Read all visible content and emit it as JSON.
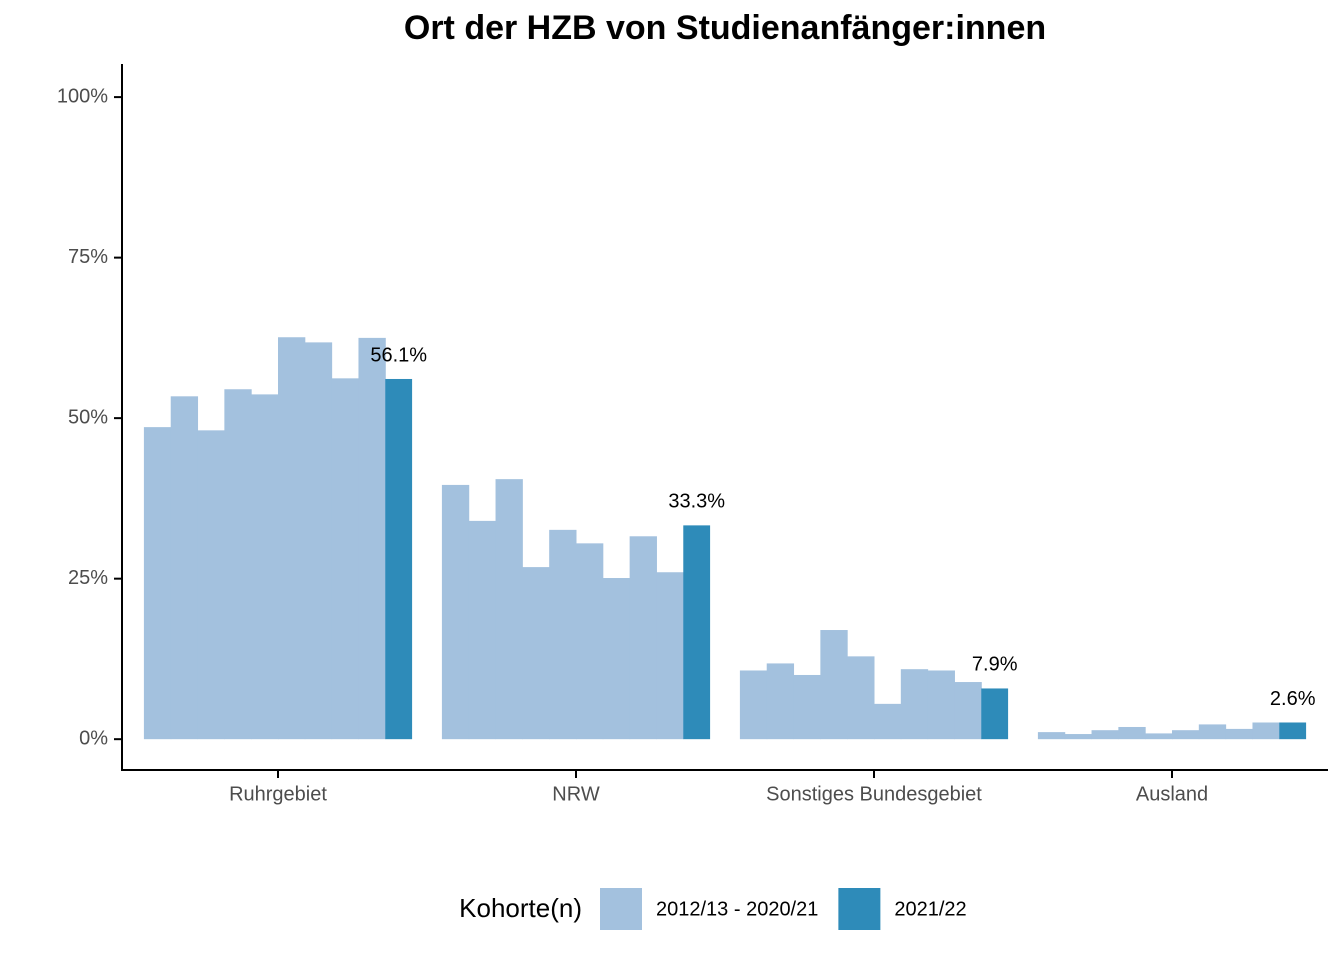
{
  "chart_data": {
    "type": "bar",
    "title": "Ort der HZB von Studienanfänger:innen",
    "categories": [
      "Ruhrgebiet",
      "NRW",
      "Sonstiges Bundesgebiet",
      "Ausland"
    ],
    "series": [
      {
        "name": "2012/13 - 2020/21",
        "color": "#a3c1de",
        "values": [
          [
            48.6,
            53.4,
            48.1,
            54.5,
            53.7,
            62.6,
            61.8,
            56.2,
            62.5
          ],
          [
            39.6,
            34.0,
            40.5,
            26.8,
            32.6,
            30.5,
            25.1,
            31.6,
            26.0
          ],
          [
            10.7,
            11.8,
            10.0,
            17.0,
            12.9,
            5.5,
            10.9,
            10.7,
            8.9
          ],
          [
            1.1,
            0.8,
            1.4,
            1.9,
            0.9,
            1.4,
            2.3,
            1.6,
            2.6
          ]
        ]
      },
      {
        "name": "2021/22",
        "color": "#2e8bb9",
        "values": [
          56.1,
          33.3,
          7.9,
          2.6
        ],
        "value_labels": [
          "56.1%",
          "33.3%",
          "7.9%",
          "2.6%"
        ]
      }
    ],
    "legend_title": "Kohorte(n)",
    "ylim": [
      -4.8,
      105
    ],
    "yticks": [
      {
        "value": 0,
        "label": "0%"
      },
      {
        "value": 25,
        "label": "25%"
      },
      {
        "value": 50,
        "label": "50%"
      },
      {
        "value": 75,
        "label": "75%"
      },
      {
        "value": 100,
        "label": "100%"
      }
    ],
    "grid": false
  }
}
